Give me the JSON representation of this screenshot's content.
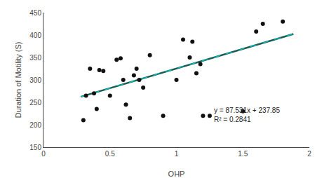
{
  "chart_data": {
    "type": "scatter",
    "xlabel": "OHP",
    "ylabel": "Duration of Motility (S)",
    "xlim": [
      0,
      2
    ],
    "ylim": [
      150,
      450
    ],
    "xticks": [
      0,
      0.5,
      1,
      1.5,
      2
    ],
    "yticks": [
      150,
      200,
      250,
      300,
      350,
      400,
      450
    ],
    "grid": false,
    "series": [
      {
        "type": "scatter",
        "marker": "circle",
        "color": "#111111",
        "x": [
          0.3,
          0.32,
          0.35,
          0.38,
          0.4,
          0.42,
          0.45,
          0.5,
          0.55,
          0.58,
          0.6,
          0.62,
          0.65,
          0.68,
          0.7,
          0.72,
          0.75,
          0.8,
          0.9,
          1.0,
          1.05,
          1.1,
          1.12,
          1.15,
          1.18,
          1.2,
          1.25,
          1.5,
          1.6,
          1.65,
          1.8
        ],
        "values": [
          210,
          265,
          325,
          270,
          235,
          322,
          320,
          265,
          345,
          348,
          300,
          245,
          215,
          310,
          325,
          300,
          283,
          355,
          220,
          300,
          390,
          350,
          385,
          315,
          335,
          220,
          220,
          230,
          408,
          425,
          430
        ]
      },
      {
        "type": "line",
        "line_style": "solid",
        "color": "#1a5c52",
        "x": [
          0.28,
          1.88
        ],
        "values": [
          262.35868,
          402.40828
        ]
      },
      {
        "type": "line",
        "line_style": "dashed",
        "color": "#00c8c8",
        "x": [
          0.28,
          1.88
        ],
        "values": [
          262.35868,
          402.40828
        ]
      }
    ],
    "annotations": [
      {
        "x": 1.27,
        "y": 200,
        "text": "y = 87.531x + 237.85\nR² = 0.2841"
      }
    ]
  }
}
